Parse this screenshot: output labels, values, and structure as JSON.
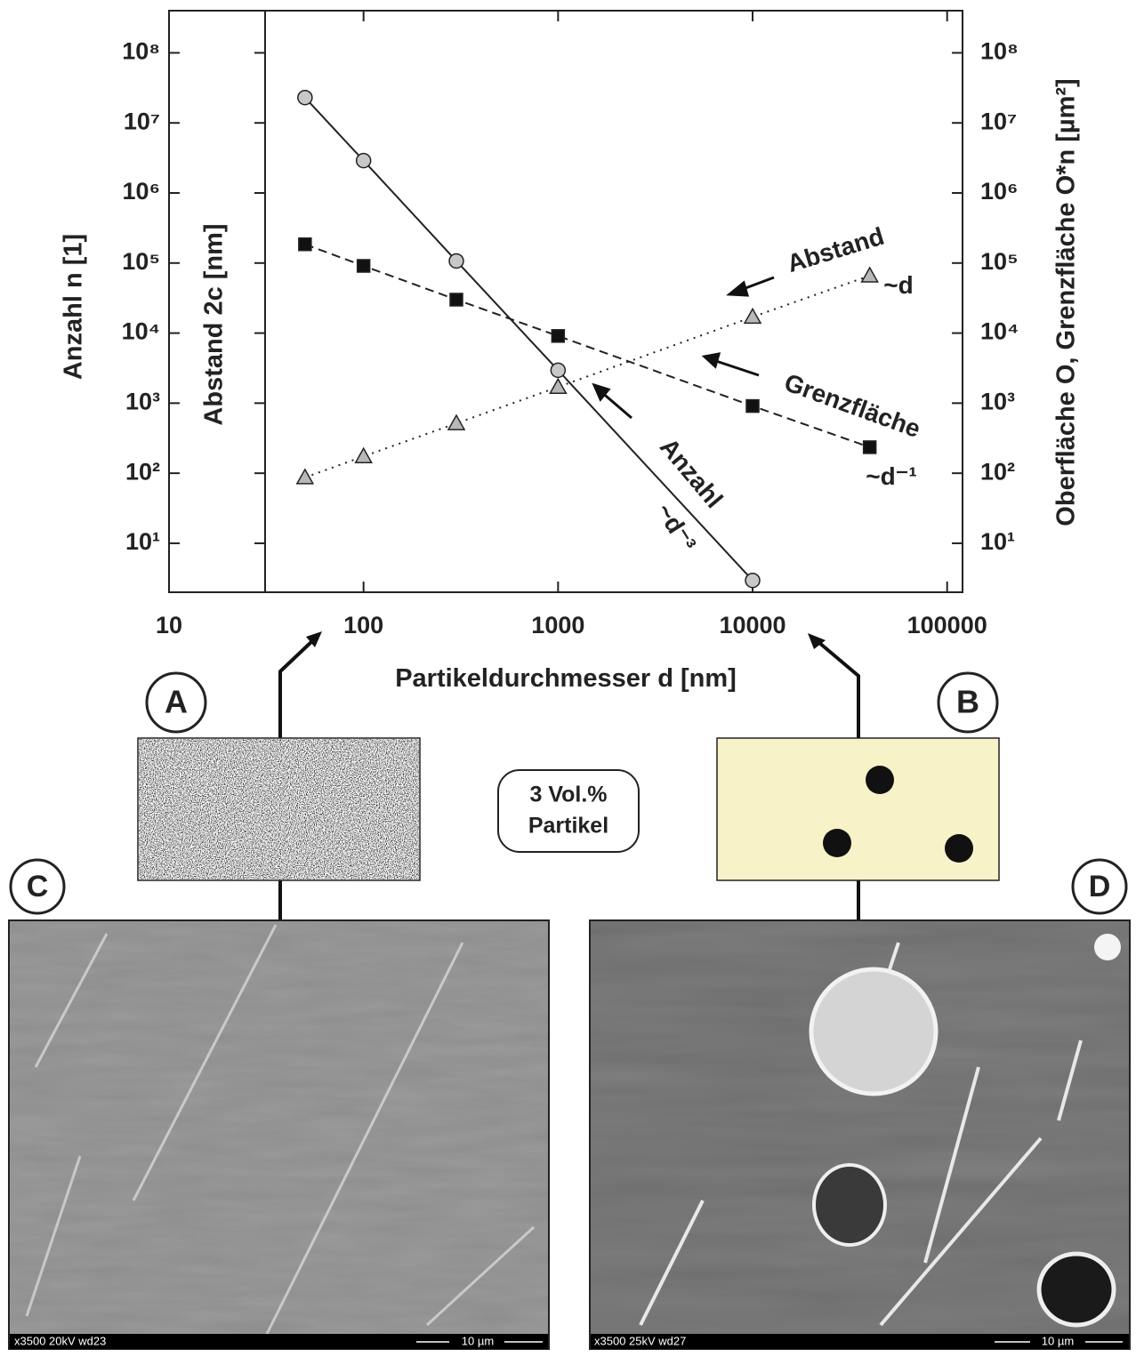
{
  "chart_data": {
    "type": "scatter-line",
    "x_label": "Partikeldurchmesser d [nm]",
    "y_label": "Anzahl n [1]",
    "y_label_inner": "Abstand 2c [nm]",
    "y2_label": "Oberfläche O, Grenzfläche O*n [µm²]",
    "log_x": true,
    "log_y": true,
    "xlim": [
      10,
      120000
    ],
    "xticks": [
      10,
      100,
      1000,
      10000,
      100000
    ],
    "ylim": [
      2,
      400000000
    ],
    "yticks": [
      {
        "value": 10,
        "label": "10¹"
      },
      {
        "value": 100,
        "label": "10²"
      },
      {
        "value": 1000,
        "label": "10³"
      },
      {
        "value": 10000,
        "label": "10⁴"
      },
      {
        "value": 100000,
        "label": "10⁵"
      },
      {
        "value": 1000000,
        "label": "10⁶"
      },
      {
        "value": 10000000,
        "label": "10⁷"
      },
      {
        "value": 100000000,
        "label": "10⁸"
      }
    ],
    "series": [
      {
        "name": "Anzahl",
        "color": "#c8c8c8",
        "marker": "circle",
        "dash": "none",
        "x": [
          50,
          100,
          300,
          1000,
          10000
        ],
        "values": [
          23000000,
          2900000,
          107000,
          2950,
          2.95
        ]
      },
      {
        "name": "Grenzfläche",
        "color": "#111111",
        "marker": "square",
        "dash": "10 6",
        "x": [
          50,
          100,
          300,
          1000,
          10000,
          40000
        ],
        "values": [
          185000,
          91000,
          30000,
          9100,
          910,
          235
        ]
      },
      {
        "name": "Abstand",
        "color": "#b8b8b8",
        "marker": "triangle",
        "dash": "2 6",
        "x": [
          50,
          100,
          300,
          1000,
          10000,
          40000
        ],
        "values": [
          87,
          174,
          515,
          1700,
          17000,
          66000
        ]
      }
    ],
    "annotations": [
      "~d",
      "~d⁻¹",
      "~d⁻³"
    ]
  },
  "panels": {
    "labels": [
      "A",
      "B",
      "C",
      "D"
    ],
    "box_text": [
      "3 Vol.%",
      "Partikel"
    ],
    "sem_c": {
      "info": "x3500  20kV  wd23",
      "scale": "10 µm"
    },
    "sem_d": {
      "info": "x3500  25kV  wd27",
      "scale": "10 µm"
    }
  }
}
